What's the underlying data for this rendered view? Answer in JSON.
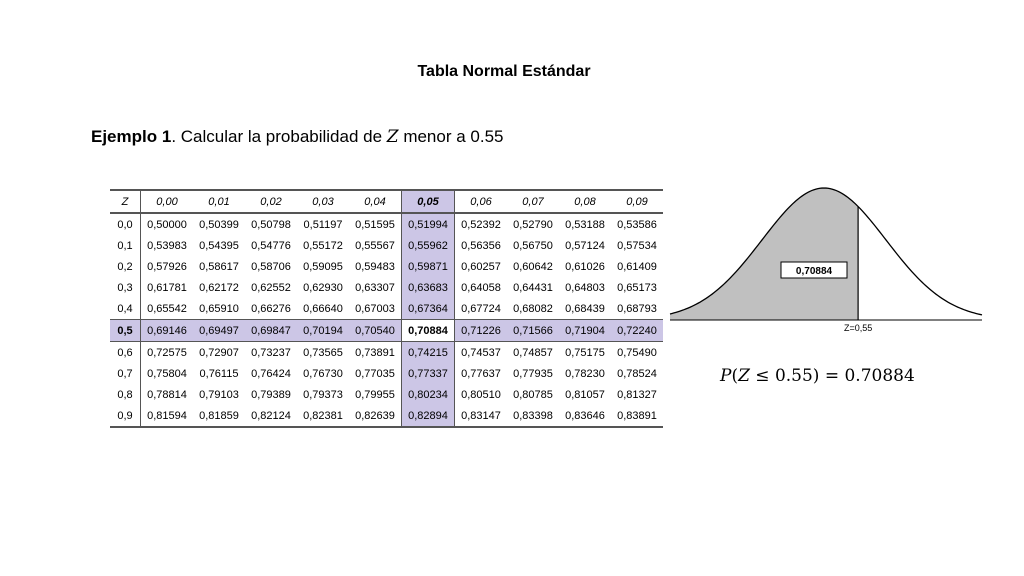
{
  "title": "Tabla Normal Estándar",
  "example": {
    "label": "Ejemplo 1",
    "text_before": ". Calcular la probabilidad de ",
    "variable": "Z",
    "text_after": " menor a 0.55"
  },
  "table": {
    "corner": "Z",
    "columns": [
      "0,00",
      "0,01",
      "0,02",
      "0,03",
      "0,04",
      "0,05",
      "0,06",
      "0,07",
      "0,08",
      "0,09"
    ],
    "highlight_column_index": 5,
    "highlight_row_index": 5,
    "rows": [
      {
        "z": "0,0",
        "values": [
          "0,50000",
          "0,50399",
          "0,50798",
          "0,51197",
          "0,51595",
          "0,51994",
          "0,52392",
          "0,52790",
          "0,53188",
          "0,53586"
        ]
      },
      {
        "z": "0,1",
        "values": [
          "0,53983",
          "0,54395",
          "0,54776",
          "0,55172",
          "0,55567",
          "0,55962",
          "0,56356",
          "0,56750",
          "0,57124",
          "0,57534"
        ]
      },
      {
        "z": "0,2",
        "values": [
          "0,57926",
          "0,58617",
          "0,58706",
          "0,59095",
          "0,59483",
          "0,59871",
          "0,60257",
          "0,60642",
          "0,61026",
          "0,61409"
        ]
      },
      {
        "z": "0,3",
        "values": [
          "0,61781",
          "0,62172",
          "0,62552",
          "0,62930",
          "0,63307",
          "0,63683",
          "0,64058",
          "0,64431",
          "0,64803",
          "0,65173"
        ]
      },
      {
        "z": "0,4",
        "values": [
          "0,65542",
          "0,65910",
          "0,66276",
          "0,66640",
          "0,67003",
          "0,67364",
          "0,67724",
          "0,68082",
          "0,68439",
          "0,68793"
        ]
      },
      {
        "z": "0,5",
        "values": [
          "0,69146",
          "0,69497",
          "0,69847",
          "0,70194",
          "0,70540",
          "0,70884",
          "0,71226",
          "0,71566",
          "0,71904",
          "0,72240"
        ]
      },
      {
        "z": "0,6",
        "values": [
          "0,72575",
          "0,72907",
          "0,73237",
          "0,73565",
          "0,73891",
          "0,74215",
          "0,74537",
          "0,74857",
          "0,75175",
          "0,75490"
        ]
      },
      {
        "z": "0,7",
        "values": [
          "0,75804",
          "0,76115",
          "0,76424",
          "0,76730",
          "0,77035",
          "0,77337",
          "0,77637",
          "0,77935",
          "0,78230",
          "0,78524"
        ]
      },
      {
        "z": "0,8",
        "values": [
          "0,78814",
          "0,79103",
          "0,79389",
          "0,79373",
          "0,79955",
          "0,80234",
          "0,80510",
          "0,80785",
          "0,81057",
          "0,81327"
        ]
      },
      {
        "z": "0,9",
        "values": [
          "0,81594",
          "0,81859",
          "0,82124",
          "0,82381",
          "0,82639",
          "0,82894",
          "0,83147",
          "0,83398",
          "0,83646",
          "0,83891"
        ]
      }
    ]
  },
  "curve": {
    "area_label": "0,70884",
    "z_label": "Z=0,55",
    "z_value": 0.55,
    "fill_color": "#c0c0c0"
  },
  "result": {
    "p": "P",
    "open": "(",
    "var": "Z",
    "rel": " ≤ 0.55) = 0.70884"
  }
}
